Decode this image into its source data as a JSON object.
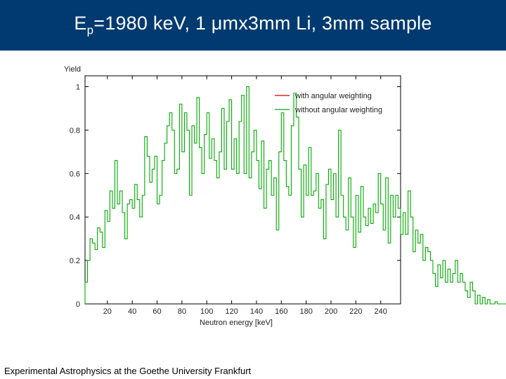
{
  "header": {
    "title_prefix": "E",
    "title_subscript": "p",
    "title_rest": "=1980 keV, 1 μmx3mm Li, 3mm sample",
    "background_color": "#003a70"
  },
  "footer": {
    "text": "Experimental Astrophysics at the Goethe University Frankfurt"
  },
  "chart_data": {
    "type": "line",
    "style": "step",
    "xlabel": "Neutron energy [keV]",
    "ylabel": "Yield",
    "xlim": [
      2,
      256
    ],
    "ylim": [
      0,
      1.05
    ],
    "x_ticks": [
      20,
      40,
      60,
      80,
      100,
      120,
      140,
      160,
      180,
      200,
      220,
      240
    ],
    "y_ticks": [
      0,
      0.2,
      0.4,
      0.6,
      0.8,
      1
    ],
    "y_tick_labels": [
      "0",
      "0.2",
      "0.4",
      "0.6",
      "0.8",
      "1"
    ],
    "grid": false,
    "legend_position": "top-right",
    "bin_width": 2,
    "x_start": 2,
    "series": [
      {
        "name": "with angular weighting",
        "color": "#cc0000",
        "values": []
      },
      {
        "name": "without angular weighting",
        "color": "#00aa00",
        "values": [
          0.1,
          0.2,
          0.3,
          0.28,
          0.25,
          0.35,
          0.33,
          0.26,
          0.43,
          0.38,
          0.52,
          0.44,
          0.66,
          0.46,
          0.52,
          0.42,
          0.3,
          0.46,
          0.48,
          0.44,
          0.55,
          0.48,
          0.4,
          0.5,
          0.77,
          0.68,
          0.56,
          0.62,
          0.68,
          0.46,
          0.5,
          0.66,
          0.74,
          0.82,
          0.88,
          0.8,
          0.6,
          0.62,
          0.92,
          0.7,
          0.88,
          0.8,
          0.5,
          0.82,
          0.74,
          0.95,
          0.72,
          0.6,
          0.78,
          0.88,
          0.67,
          0.76,
          0.66,
          0.58,
          0.7,
          0.9,
          0.62,
          0.84,
          0.94,
          0.62,
          0.76,
          0.6,
          0.84,
          0.96,
          0.6,
          1.0,
          0.58,
          0.7,
          0.8,
          0.66,
          0.53,
          0.75,
          0.44,
          0.62,
          0.66,
          0.5,
          0.58,
          0.34,
          0.7,
          0.88,
          0.66,
          0.54,
          0.5,
          0.82,
          0.97,
          0.86,
          0.62,
          0.4,
          0.64,
          0.5,
          0.72,
          0.5,
          0.52,
          0.6,
          0.44,
          0.48,
          0.3,
          0.55,
          0.62,
          0.48,
          0.6,
          0.4,
          0.8,
          0.5,
          0.4,
          0.34,
          0.58,
          0.4,
          0.26,
          0.5,
          0.33,
          0.54,
          0.4,
          0.36,
          0.44,
          0.37,
          0.46,
          0.42,
          0.6,
          0.46,
          0.34,
          0.58,
          0.28,
          0.5,
          0.4,
          0.5,
          0.44,
          0.32,
          0.42,
          0.32,
          0.52,
          0.4,
          0.24,
          0.34,
          0.28,
          0.32,
          0.2,
          0.26,
          0.24,
          0.2,
          0.14,
          0.08,
          0.18,
          0.12,
          0.2,
          0.1,
          0.16,
          0.1,
          0.14,
          0.2,
          0.1,
          0.14,
          0.1,
          0.06,
          0.03,
          0.1,
          0.06,
          0.0,
          0.04,
          0.0,
          0.03,
          0.0,
          0.02,
          0.0,
          0.0,
          0.01,
          0.0,
          0.0,
          0.0,
          0.0,
          0.0,
          0.0,
          0.0,
          0.0,
          0.0,
          0.0,
          0.0,
          0.0,
          0.0,
          0.0,
          0.06,
          0.0,
          0.0,
          0.0,
          0.0,
          0.0,
          0.0,
          0.0,
          0.0,
          0.0,
          0.0,
          0.0,
          0.0,
          0.0,
          0.0,
          0.0,
          0.0,
          0.0,
          0.0,
          0.0,
          0.0,
          0.0,
          0.0,
          0.0,
          0.0,
          0.0,
          0.0,
          0.0,
          0.0,
          0.0,
          0.0,
          0.0,
          0.0,
          0.0,
          0.0,
          0.0,
          0.0,
          0.0,
          0.0,
          0.0,
          0.0,
          0.0,
          0.0,
          0.0,
          0.0,
          0.0,
          0.0,
          0.0,
          0.0,
          0.0,
          0.0,
          0.0,
          0.0,
          0.0,
          0.0,
          0.0,
          0.0,
          0.0,
          0.0,
          0.0,
          0.0,
          0.0,
          0.0
        ]
      }
    ]
  }
}
